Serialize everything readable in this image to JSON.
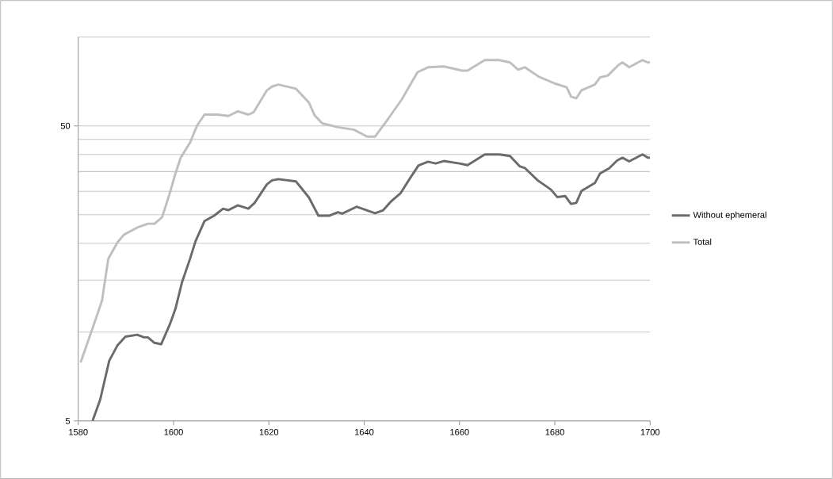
{
  "chart_data": {
    "type": "line",
    "log": "y",
    "grid": "y",
    "legend": "right",
    "xlim": [
      1580,
      1700
    ],
    "xticks": [
      1580,
      1600,
      1620,
      1640,
      1660,
      1680,
      1700
    ],
    "ylim": [
      5,
      100
    ],
    "yticks": [
      5,
      {
        "value": 10,
        "label": null
      },
      {
        "value": 15,
        "label": null
      },
      {
        "value": 20,
        "label": null
      },
      {
        "value": 25,
        "label": null
      },
      {
        "value": 30,
        "label": null
      },
      {
        "value": 35,
        "label": null
      },
      {
        "value": 40,
        "label": null
      },
      {
        "value": 45,
        "label": null
      },
      50,
      {
        "value": 100,
        "label": null
      }
    ],
    "series": [
      {
        "name": "Without ephemeral",
        "color": "#6b6b6b",
        "x": [
          1583,
          1584.6,
          1585.4,
          1586.5,
          1588.2,
          1589.9,
          1592.4,
          1593.8,
          1594.6,
          1596,
          1597.4,
          1599.3,
          1600.4,
          1601.8,
          1603.5,
          1604.6,
          1606.5,
          1608.5,
          1610.4,
          1611.5,
          1613.5,
          1615.7,
          1617,
          1619.6,
          1620.7,
          1622,
          1625.7,
          1628.4,
          1630.4,
          1632.6,
          1634.5,
          1635.4,
          1638.4,
          1642.3,
          1644,
          1645.6,
          1647.6,
          1649.5,
          1651.4,
          1653.4,
          1655,
          1656.7,
          1660,
          1661.7,
          1665.3,
          1668.4,
          1670.6,
          1672.6,
          1673.7,
          1676.4,
          1679.2,
          1680.5,
          1682.2,
          1683.4,
          1684.5,
          1685.6,
          1688.4,
          1689.5,
          1691.4,
          1693.1,
          1694.2,
          1695.6,
          1698.4,
          1699.5,
          1700
        ],
        "values": [
          5.0,
          5.9,
          6.7,
          8.0,
          9.0,
          9.65,
          9.8,
          9.6,
          9.6,
          9.2,
          9.1,
          10.7,
          12,
          14.8,
          17.8,
          20.3,
          23.8,
          24.8,
          26.2,
          25.9,
          26.9,
          26.2,
          27.4,
          31.7,
          32.7,
          33,
          32.4,
          28.6,
          24.8,
          24.8,
          25.5,
          25.2,
          26.6,
          25.3,
          25.9,
          27.7,
          29.5,
          33,
          36.7,
          37.8,
          37.3,
          38,
          37.3,
          36.8,
          40,
          40,
          39.5,
          36.5,
          36,
          32.7,
          30.4,
          28.7,
          28.9,
          27.2,
          27.4,
          30.1,
          32,
          34.5,
          35.9,
          38.2,
          39,
          37.9,
          40,
          39,
          39
        ]
      },
      {
        "name": "Total",
        "color": "#bfbfbf",
        "x": [
          1580.5,
          1583,
          1585,
          1586.3,
          1588.2,
          1589.6,
          1592.6,
          1594.6,
          1596,
          1597.6,
          1599.3,
          1600.4,
          1601.5,
          1603.5,
          1604.9,
          1606.5,
          1609.3,
          1611.5,
          1613.5,
          1615.7,
          1616.8,
          1619.6,
          1620.7,
          1622,
          1625.7,
          1628.4,
          1629.6,
          1631.2,
          1634.5,
          1637.9,
          1640.6,
          1642.3,
          1645.1,
          1647.9,
          1651.2,
          1653.4,
          1656.7,
          1660.5,
          1661.7,
          1665.3,
          1668.4,
          1670.6,
          1672.3,
          1673.7,
          1676.7,
          1680,
          1682.5,
          1683.4,
          1684.5,
          1685.6,
          1688.4,
          1689.5,
          1691.1,
          1693.4,
          1694.2,
          1695.6,
          1698.4,
          1699.5,
          1700
        ],
        "values": [
          7.9,
          10.3,
          12.8,
          17.7,
          20.1,
          21.4,
          22.7,
          23.3,
          23.3,
          24.5,
          29.9,
          34.5,
          39,
          44,
          50,
          54.6,
          54.6,
          54,
          56,
          54.6,
          55.6,
          66,
          68,
          69,
          66.8,
          60,
          54.3,
          51,
          49.5,
          48.5,
          46,
          46,
          53,
          61.5,
          76,
          79,
          79.5,
          77,
          77,
          83.5,
          83.5,
          82,
          77.5,
          79,
          73.3,
          69.6,
          67.5,
          62.8,
          62,
          66,
          69,
          73,
          74,
          80.5,
          82,
          79,
          83.5,
          82,
          82
        ]
      }
    ]
  }
}
